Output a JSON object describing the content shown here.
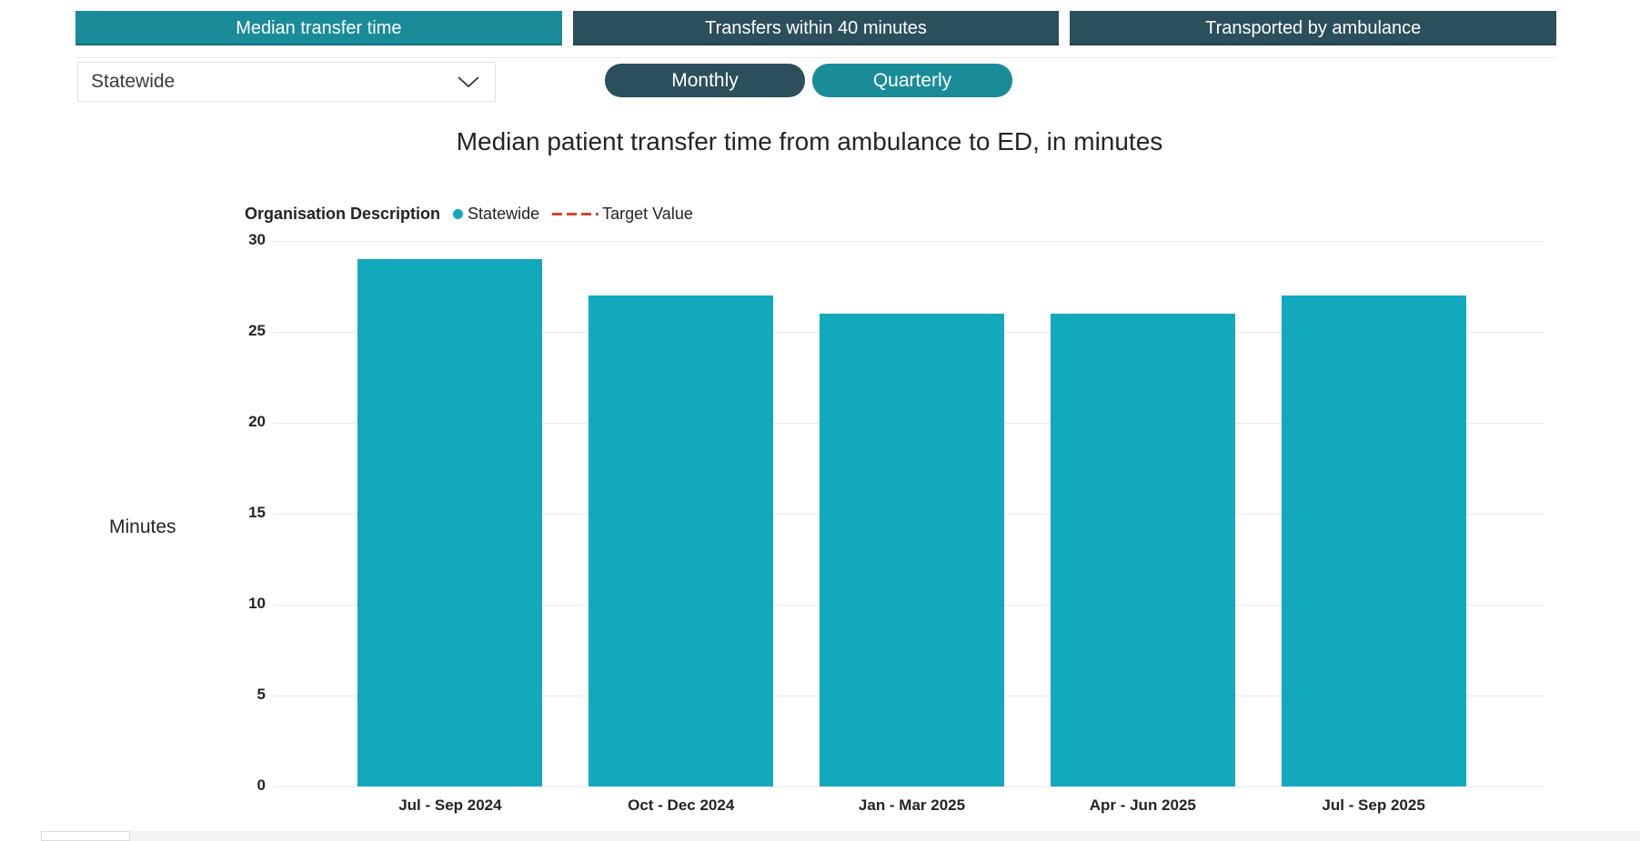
{
  "tabs": {
    "items": [
      {
        "label": "Median transfer time",
        "active": true
      },
      {
        "label": "Transfers within 40 minutes",
        "active": false
      },
      {
        "label": "Transported by ambulance",
        "active": false
      }
    ]
  },
  "filters": {
    "organisation_dropdown": {
      "value": "Statewide"
    },
    "period_toggle": {
      "monthly_label": "Monthly",
      "quarterly_label": "Quarterly",
      "selected": "Quarterly"
    }
  },
  "chart_data": {
    "type": "bar",
    "title": "Median patient transfer time from ambulance to ED, in minutes",
    "legend": {
      "title": "Organisation Description",
      "series_label": "Statewide",
      "target_label": "Target Value",
      "position": "top-left"
    },
    "categories": [
      "Jul - Sep 2024",
      "Oct - Dec 2024",
      "Jan - Mar 2025",
      "Apr - Jun 2025",
      "Jul - Sep 2025"
    ],
    "values": [
      29,
      27,
      26,
      26,
      27
    ],
    "xlabel": "",
    "ylabel": "Minutes",
    "ylim": [
      0,
      30
    ],
    "ytick_step": 5,
    "grid": true
  },
  "colors": {
    "bar_teal": "#12A9BC",
    "active_teal": "#1A8C99",
    "dark_teal": "#2B4F5B",
    "target_red": "#D64532",
    "gridline": "#E9E9E9",
    "text_dark": "#252423"
  }
}
